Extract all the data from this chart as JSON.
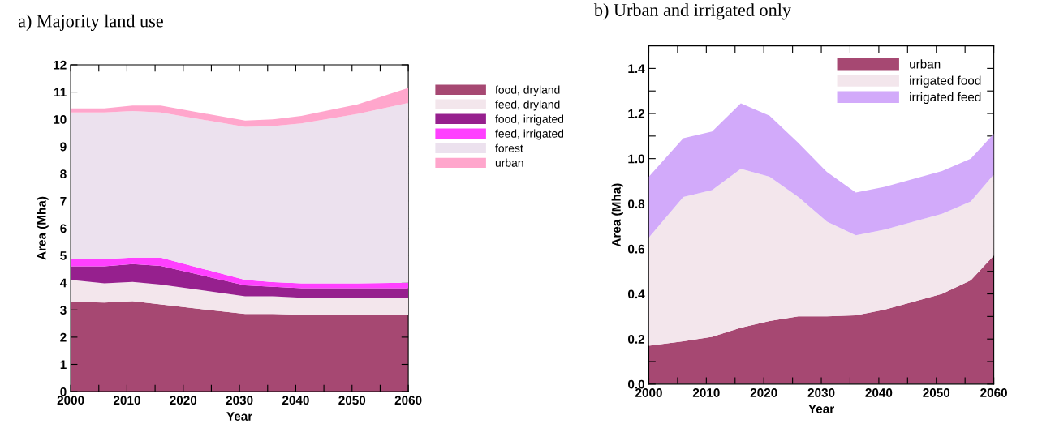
{
  "chart_data": [
    {
      "type": "area",
      "stacked": true,
      "title": "a) Majority land use",
      "xlabel": "Year",
      "ylabel": "Area (Mha)",
      "x": [
        2000,
        2006,
        2011,
        2016,
        2031,
        2036,
        2041,
        2051,
        2060
      ],
      "series": [
        {
          "name": "food, dryland",
          "color": "#a64872",
          "values": [
            3.3,
            3.27,
            3.32,
            3.2,
            2.85,
            2.85,
            2.82,
            2.82,
            2.82
          ]
        },
        {
          "name": "feed, dryland",
          "color": "#f3e6ec",
          "values": [
            0.8,
            0.71,
            0.71,
            0.73,
            0.65,
            0.65,
            0.63,
            0.63,
            0.63
          ]
        },
        {
          "name": "food, irrigated",
          "color": "#96208e",
          "values": [
            0.5,
            0.62,
            0.65,
            0.69,
            0.4,
            0.35,
            0.35,
            0.35,
            0.35
          ]
        },
        {
          "name": "feed, irrigated",
          "color": "#ff40ff",
          "values": [
            0.27,
            0.27,
            0.24,
            0.3,
            0.2,
            0.17,
            0.18,
            0.18,
            0.2
          ]
        },
        {
          "name": "forest",
          "color": "#ece1ee",
          "values": [
            5.38,
            5.38,
            5.38,
            5.33,
            5.62,
            5.73,
            5.87,
            6.22,
            6.6
          ]
        },
        {
          "name": "urban",
          "color": "#ffa6cc",
          "values": [
            0.15,
            0.15,
            0.2,
            0.25,
            0.23,
            0.25,
            0.27,
            0.35,
            0.55
          ]
        }
      ],
      "xlim": [
        2000,
        2060
      ],
      "ylim": [
        0,
        12
      ],
      "xticks": [
        2000,
        {
          "value": 2005,
          "label": null
        },
        2010,
        {
          "value": 2015,
          "label": null
        },
        2020,
        {
          "value": 2025,
          "label": null
        },
        2030,
        {
          "value": 2035,
          "label": null
        },
        2040,
        {
          "value": 2045,
          "label": null
        },
        2050,
        {
          "value": 2055,
          "label": null
        },
        2060
      ],
      "yticks": [
        0,
        1,
        2,
        3,
        4,
        5,
        6,
        7,
        8,
        9,
        10,
        11,
        12
      ],
      "legend": "right",
      "grid": false
    },
    {
      "type": "area",
      "stacked": true,
      "title": "b) Urban and irrigated only",
      "xlabel": "Year",
      "ylabel": "Area (Mha)",
      "x": [
        2000,
        2006,
        2011,
        2016,
        2021,
        2026,
        2031,
        2036,
        2041,
        2046,
        2051,
        2056,
        2060
      ],
      "series": [
        {
          "name": "urban",
          "color": "#a64872",
          "values": [
            0.17,
            0.19,
            0.21,
            0.25,
            0.28,
            0.3,
            0.3,
            0.305,
            0.33,
            0.365,
            0.4,
            0.46,
            0.57
          ]
        },
        {
          "name": "irrigated food",
          "color": "#f3e6ec",
          "values": [
            0.48,
            0.64,
            0.65,
            0.705,
            0.64,
            0.53,
            0.42,
            0.355,
            0.355,
            0.355,
            0.355,
            0.35,
            0.36
          ]
        },
        {
          "name": "irrigated feed",
          "color": "#d2aafa",
          "values": [
            0.27,
            0.26,
            0.26,
            0.29,
            0.27,
            0.24,
            0.22,
            0.19,
            0.19,
            0.19,
            0.19,
            0.19,
            0.18
          ]
        }
      ],
      "xlim": [
        2000,
        2060
      ],
      "ylim": [
        0,
        1.5
      ],
      "xticks": [
        2000,
        {
          "value": 2005,
          "label": null
        },
        2010,
        {
          "value": 2015,
          "label": null
        },
        2020,
        {
          "value": 2025,
          "label": null
        },
        2030,
        {
          "value": 2035,
          "label": null
        },
        2040,
        {
          "value": 2045,
          "label": null
        },
        2050,
        {
          "value": 2055,
          "label": null
        },
        2060
      ],
      "yticks": [
        {
          "value": 0,
          "label": "0.0"
        },
        {
          "value": 0.1,
          "label": null
        },
        {
          "value": 0.2,
          "label": "0.2"
        },
        {
          "value": 0.3,
          "label": null
        },
        {
          "value": 0.4,
          "label": "0.4"
        },
        {
          "value": 0.5,
          "label": null
        },
        {
          "value": 0.6,
          "label": "0.6"
        },
        {
          "value": 0.7,
          "label": null
        },
        {
          "value": 0.8,
          "label": "0.8"
        },
        {
          "value": 0.9,
          "label": null
        },
        {
          "value": 1.0,
          "label": "1.0"
        },
        {
          "value": 1.1,
          "label": null
        },
        {
          "value": 1.2,
          "label": "1.2"
        },
        {
          "value": 1.3,
          "label": null
        },
        {
          "value": 1.4,
          "label": "1.4"
        }
      ],
      "legend": "top right",
      "grid": false
    }
  ]
}
